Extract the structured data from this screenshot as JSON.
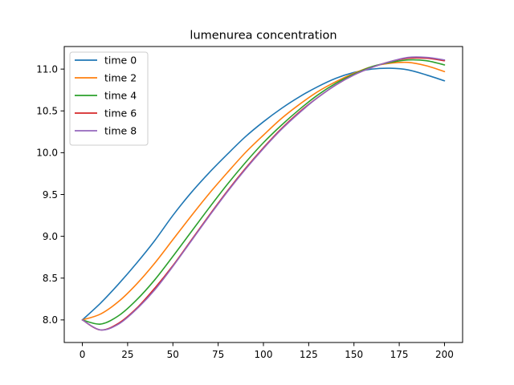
{
  "chart_data": {
    "type": "line",
    "title": "lumenurea concentration",
    "xlabel": "",
    "ylabel": "",
    "xlim": [
      -10,
      210
    ],
    "ylim": [
      7.73,
      11.27
    ],
    "xticks": [
      0,
      25,
      50,
      75,
      100,
      125,
      150,
      175,
      200
    ],
    "yticks": [
      8.0,
      8.5,
      9.0,
      9.5,
      10.0,
      10.5,
      11.0
    ],
    "grid": false,
    "legend_position": "top-left",
    "x": [
      0,
      10,
      20,
      30,
      40,
      50,
      60,
      70,
      80,
      90,
      100,
      110,
      120,
      130,
      140,
      150,
      160,
      170,
      180,
      190,
      200
    ],
    "series": [
      {
        "name": "time 0",
        "color": "#1f77b4",
        "values": [
          8.0,
          8.2,
          8.43,
          8.68,
          8.95,
          9.25,
          9.52,
          9.76,
          9.98,
          10.19,
          10.37,
          10.53,
          10.67,
          10.79,
          10.89,
          10.96,
          11.0,
          11.01,
          10.99,
          10.93,
          10.86
        ]
      },
      {
        "name": "time 2",
        "color": "#ff7f0e",
        "values": [
          8.0,
          8.07,
          8.22,
          8.43,
          8.68,
          8.96,
          9.24,
          9.51,
          9.76,
          10.0,
          10.21,
          10.41,
          10.58,
          10.73,
          10.85,
          10.95,
          11.03,
          11.07,
          11.08,
          11.04,
          10.97
        ]
      },
      {
        "name": "time 4",
        "color": "#2ca02c",
        "values": [
          8.0,
          7.95,
          8.05,
          8.24,
          8.48,
          8.76,
          9.05,
          9.34,
          9.62,
          9.88,
          10.12,
          10.33,
          10.52,
          10.69,
          10.83,
          10.94,
          11.03,
          11.08,
          11.11,
          11.1,
          11.05
        ]
      },
      {
        "name": "time 6",
        "color": "#d62728",
        "values": [
          8.0,
          7.88,
          7.96,
          8.14,
          8.38,
          8.65,
          8.95,
          9.25,
          9.54,
          9.81,
          10.06,
          10.29,
          10.49,
          10.66,
          10.81,
          10.93,
          11.02,
          11.09,
          11.13,
          11.13,
          11.1
        ]
      },
      {
        "name": "time 8",
        "color": "#9467bd",
        "values": [
          8.0,
          7.88,
          7.95,
          8.13,
          8.36,
          8.64,
          8.94,
          9.24,
          9.53,
          9.8,
          10.05,
          10.28,
          10.48,
          10.66,
          10.81,
          10.93,
          11.02,
          11.09,
          11.14,
          11.14,
          11.11
        ]
      }
    ]
  }
}
